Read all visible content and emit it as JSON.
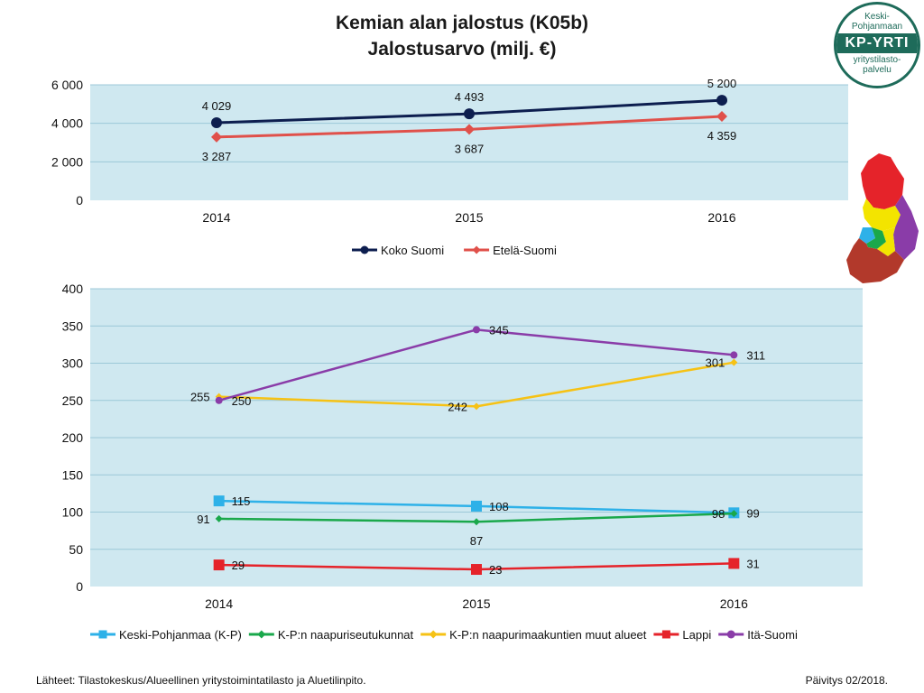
{
  "header": {
    "title_line1": "Kemian alan jalostus (K05b)",
    "title_line2": "Jalostusarvo (milj. €)"
  },
  "logo": {
    "line1": "Keski-",
    "line2": "Pohjanmaan",
    "band": "KP-YRTI",
    "line3": "yritystilasto-",
    "line4": "palvelu"
  },
  "footer": {
    "source": "Lähteet: Tilastokeskus/Alueellinen yritystoimintatilasto ja Aluetilinpito.",
    "update": "Päivitys 02/2018."
  },
  "colors": {
    "plot_bg": "#cfe8f0",
    "gridline": "#9cc8d8"
  },
  "chart_data": [
    {
      "type": "line",
      "categories": [
        "2014",
        "2015",
        "2016"
      ],
      "ylim": [
        0,
        6000
      ],
      "yticks": [
        0,
        2000,
        4000,
        6000
      ],
      "ytick_labels": [
        "0",
        "2 000",
        "4 000",
        "6 000"
      ],
      "grid": true,
      "legend_position": "bottom",
      "series": [
        {
          "name": "Koko Suomi",
          "color": "#0d1e4f",
          "marker": "circle",
          "values": [
            4029,
            4493,
            5200
          ],
          "labels": [
            "4 029",
            "4 493",
            "5 200"
          ],
          "label_pos": "above"
        },
        {
          "name": "Etelä-Suomi",
          "color": "#e0504a",
          "marker": "diamond",
          "values": [
            3287,
            3687,
            4359
          ],
          "labels": [
            "3 287",
            "3 687",
            "4 359"
          ],
          "label_pos": "below"
        }
      ]
    },
    {
      "type": "line",
      "categories": [
        "2014",
        "2015",
        "2016"
      ],
      "ylim": [
        0,
        400
      ],
      "yticks": [
        0,
        50,
        100,
        150,
        200,
        250,
        300,
        350,
        400
      ],
      "ytick_labels": [
        "0",
        "50",
        "100",
        "150",
        "200",
        "250",
        "300",
        "350",
        "400"
      ],
      "grid": true,
      "legend_position": "bottom",
      "series": [
        {
          "name": "Keski-Pohjanmaa (K-P)",
          "color": "#2eb1e8",
          "marker": "square",
          "values": [
            115,
            108,
            99
          ],
          "labels": [
            "115",
            "108",
            "99"
          ],
          "label_pos": [
            "right",
            "right",
            "right"
          ]
        },
        {
          "name": "K-P:n naapuriseutukunnat",
          "color": "#1aa84b",
          "marker": "diamond",
          "values": [
            91,
            87,
            98
          ],
          "labels": [
            "91",
            "87",
            "98"
          ],
          "label_pos": [
            "left",
            "below",
            "left"
          ]
        },
        {
          "name": "K-P:n naapurimaakuntien muut alueet",
          "color": "#f6c215",
          "marker": "diamond",
          "values": [
            255,
            242,
            301
          ],
          "labels": [
            "255",
            "242",
            "301"
          ],
          "label_pos": [
            "left",
            "left",
            "left"
          ]
        },
        {
          "name": "Lappi",
          "color": "#e5232a",
          "marker": "square",
          "values": [
            29,
            23,
            31
          ],
          "labels": [
            "29",
            "23",
            "31"
          ],
          "label_pos": [
            "right",
            "right",
            "right"
          ]
        },
        {
          "name": "Itä-Suomi",
          "color": "#8a3ca8",
          "marker": "circle",
          "values": [
            250,
            345,
            311
          ],
          "labels": [
            "250",
            "345",
            "311"
          ],
          "label_pos": [
            "right",
            "right",
            "right"
          ]
        }
      ]
    }
  ]
}
